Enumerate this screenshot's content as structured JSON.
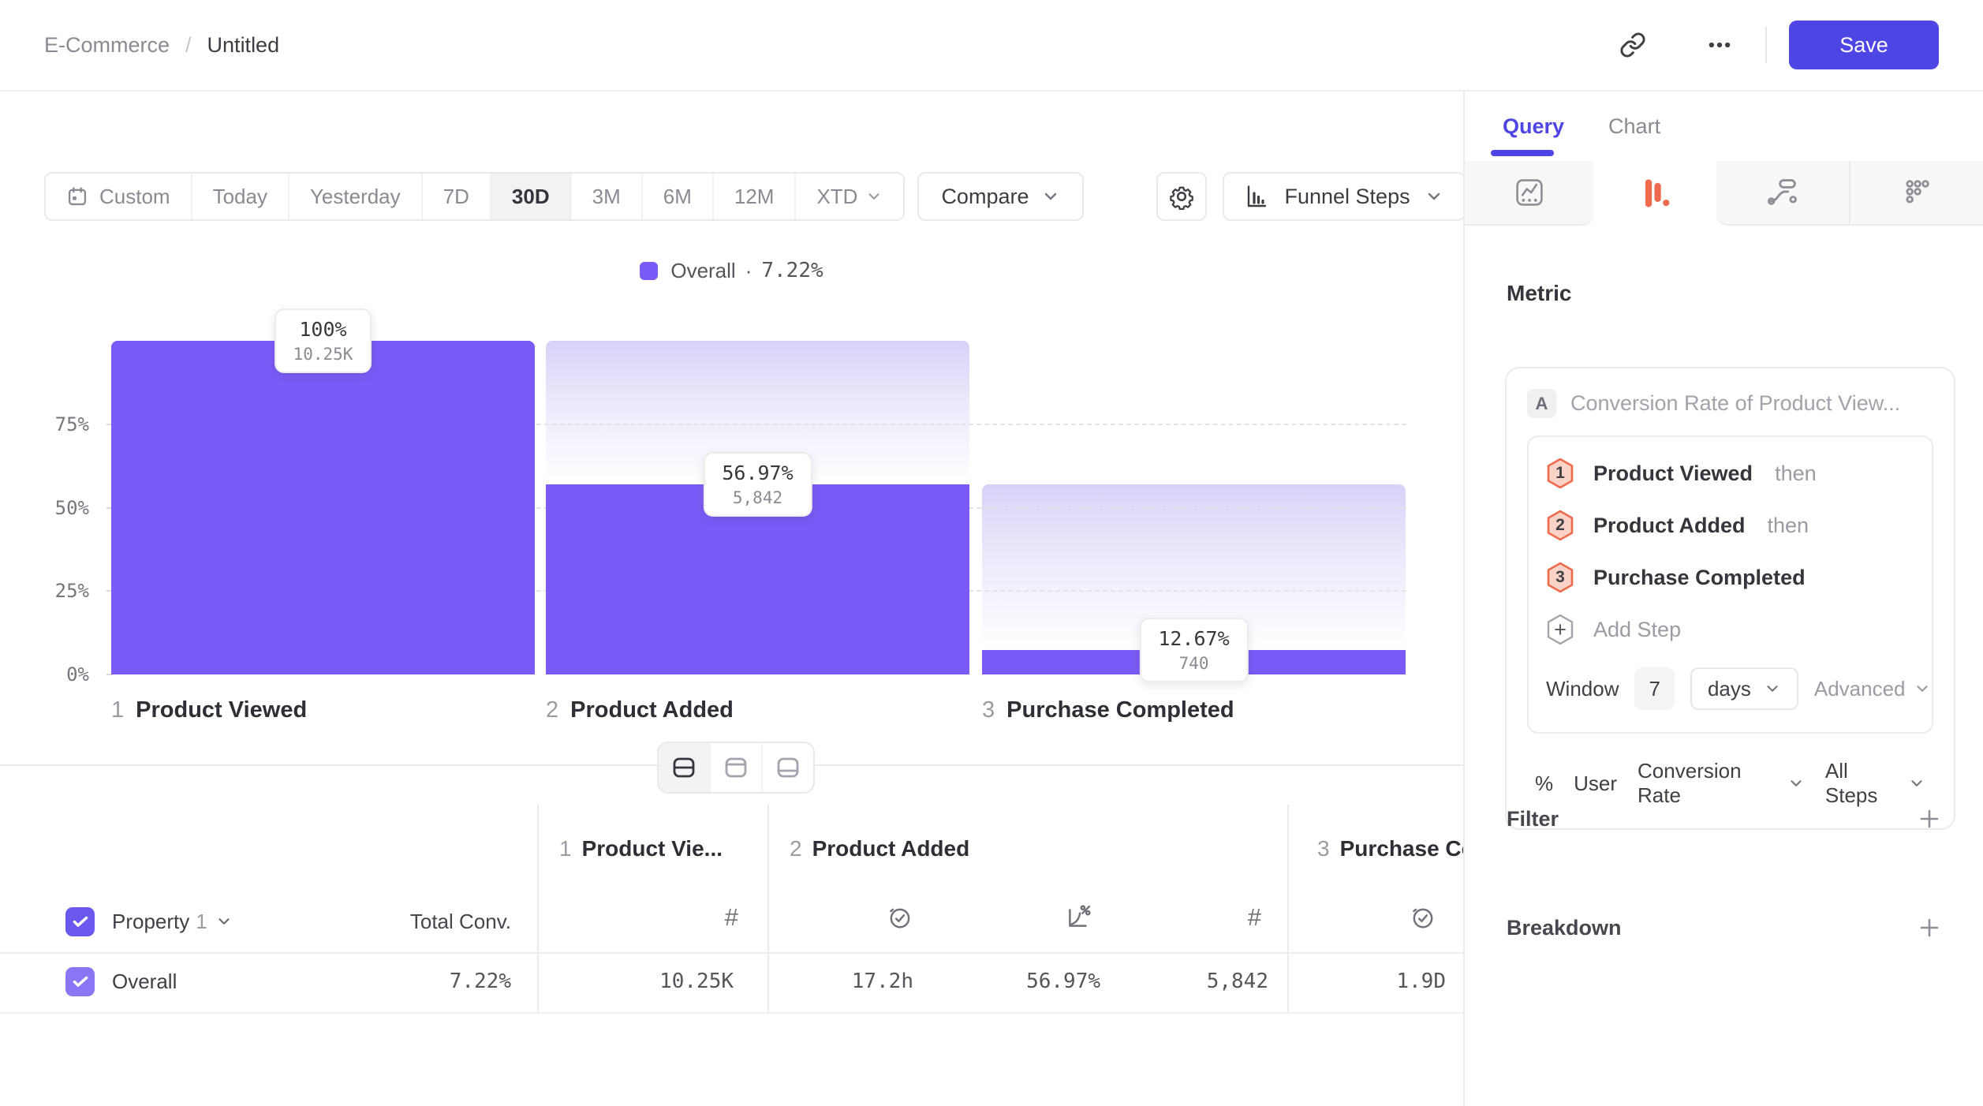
{
  "header": {
    "breadcrumb": {
      "parent": "E-Commerce",
      "separator": "/",
      "current": "Untitled"
    },
    "actions": {
      "share_icon": "link-icon",
      "more_icon": "ellipsis-icon",
      "save_label": "Save"
    }
  },
  "toolbar": {
    "date_ranges": [
      {
        "label": "Custom",
        "icon": "calendar-icon",
        "selected": false
      },
      {
        "label": "Today",
        "selected": false
      },
      {
        "label": "Yesterday",
        "selected": false
      },
      {
        "label": "7D",
        "selected": false
      },
      {
        "label": "30D",
        "selected": true
      },
      {
        "label": "3M",
        "selected": false
      },
      {
        "label": "6M",
        "selected": false
      },
      {
        "label": "12M",
        "selected": false
      },
      {
        "label": "XTD",
        "selected": false,
        "has_dropdown": true
      }
    ],
    "compare_label": "Compare",
    "settings_icon": "gear-icon",
    "chart_type": {
      "label": "Funnel Steps",
      "icon": "funnel-chart-icon"
    }
  },
  "legend": {
    "series": "Overall",
    "separator": "·",
    "value": "7.22%"
  },
  "chart_data": {
    "type": "bar",
    "subtype": "funnel-steps",
    "series_name": "Overall",
    "overall_conversion_pct": 7.22,
    "steps": [
      {
        "step": 1,
        "label": "Product Viewed",
        "count": 10250,
        "count_label": "10.25K",
        "pct_of_previous_label": "100%"
      },
      {
        "step": 2,
        "label": "Product Added",
        "count": 5842,
        "count_label": "5,842",
        "pct_of_previous_label": "56.97%"
      },
      {
        "step": 3,
        "label": "Purchase Completed",
        "count": 740,
        "count_label": "740",
        "pct_of_previous_label": "12.67%"
      }
    ],
    "y_ticks": [
      "75%",
      "50%",
      "25%",
      "0%"
    ],
    "ylim": [
      0,
      100
    ],
    "grid": "dashed-horizontal",
    "bar_color": "#7B5BF7",
    "legend_position": "top-center"
  },
  "view_toggle": {
    "options": [
      "split-view",
      "chart-only",
      "table-only"
    ],
    "selected": "split-view"
  },
  "table": {
    "group": {
      "property_label": "Property",
      "property_number": "1",
      "total_label": "Total Conv."
    },
    "columns": [
      {
        "step": "1",
        "title": "Product Vie...",
        "metric_icons": [
          "hash-icon"
        ]
      },
      {
        "step": "2",
        "title": "Product Added",
        "metric_icons": [
          "clock-check-icon",
          "chart-percent-icon",
          "hash-icon"
        ]
      },
      {
        "step": "3",
        "title": "Purchase Completed",
        "metric_icons": [
          "clock-check-icon"
        ]
      }
    ],
    "rows": [
      {
        "label": "Overall",
        "total_conv": "7.22%",
        "values": [
          "10.25K",
          "17.2h",
          "56.97%",
          "5,842",
          "1.9D"
        ],
        "checked": true
      }
    ]
  },
  "sidebar": {
    "tabs": [
      {
        "label": "Query",
        "active": true
      },
      {
        "label": "Chart",
        "active": false
      }
    ],
    "chart_type_tabs": [
      {
        "icon": "insights-icon",
        "active": false
      },
      {
        "icon": "funnel-icon",
        "active": true,
        "color": "#EE6B4E"
      },
      {
        "icon": "flows-icon",
        "active": false
      },
      {
        "icon": "retention-icon",
        "active": false
      }
    ],
    "metric": {
      "heading": "Metric",
      "series_badge": "A",
      "series_title": "Conversion Rate of Product View...",
      "steps": [
        {
          "num": "1",
          "label": "Product Viewed",
          "suffix": "then"
        },
        {
          "num": "2",
          "label": "Product Added",
          "suffix": "then"
        },
        {
          "num": "3",
          "label": "Purchase Completed",
          "suffix": ""
        }
      ],
      "add_step_label": "Add Step",
      "window": {
        "label": "Window",
        "value": "7",
        "unit": "days",
        "advanced_label": "Advanced"
      },
      "measurement": {
        "symbol": "%",
        "entity": "User",
        "metric": "Conversion Rate",
        "scope": "All Steps"
      }
    },
    "sections": [
      {
        "label": "Filter",
        "action_icon": "plus-icon"
      },
      {
        "label": "Breakdown",
        "action_icon": "plus-icon"
      }
    ]
  },
  "colors": {
    "accent": "#4F45E4",
    "bar": "#7B5BF7",
    "bar_ghost_top": "#DAD2F8",
    "step_badge_border": "#EE6B4E",
    "step_badge_fill": "#FAD2C6"
  }
}
